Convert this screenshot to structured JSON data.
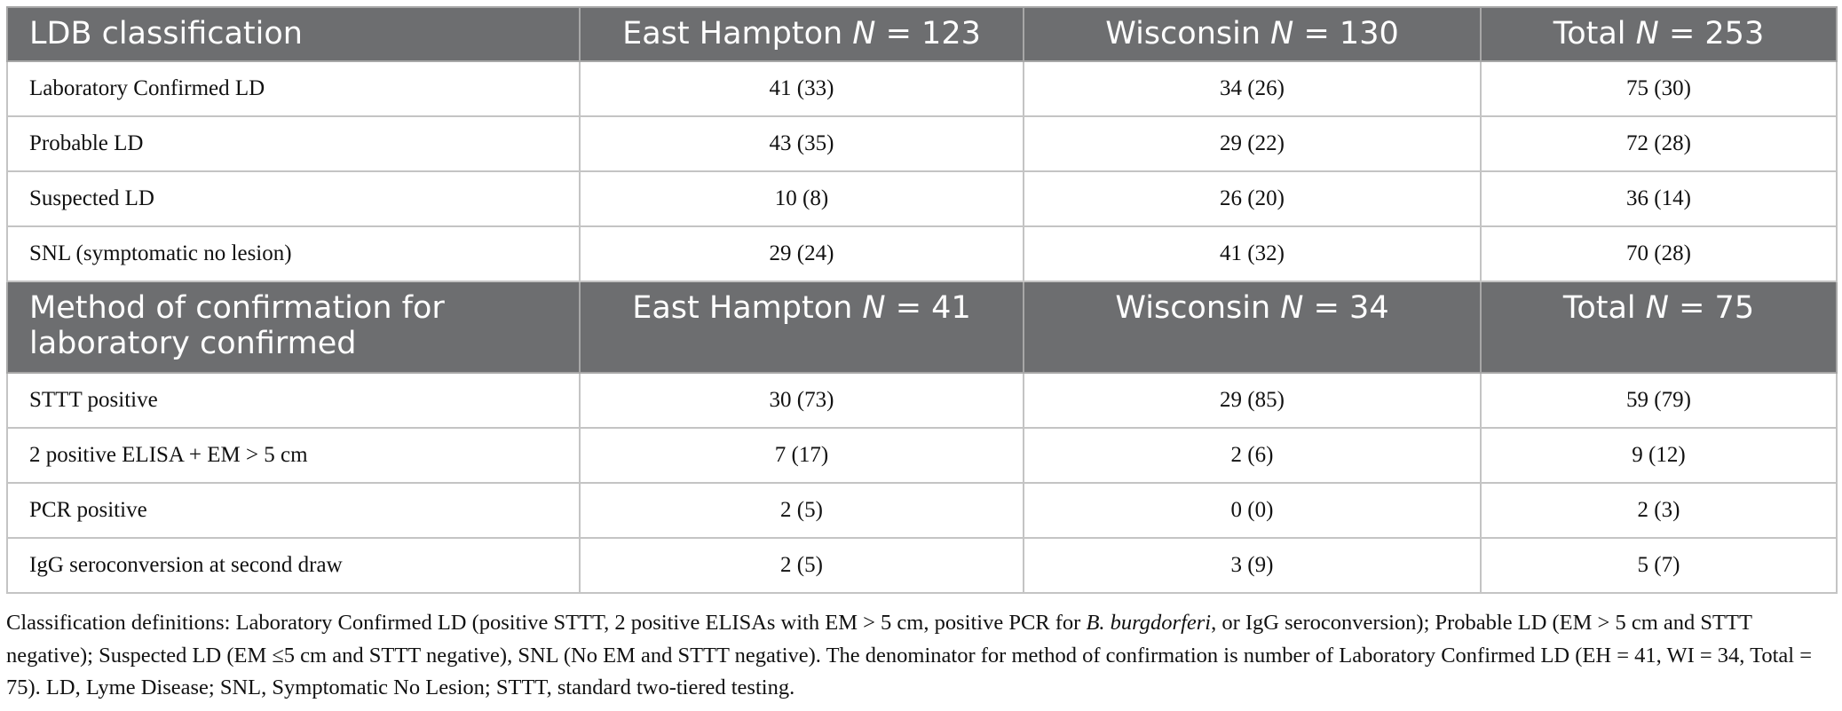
{
  "table": {
    "sections": [
      {
        "header": [
          [
            "LDB classification"
          ],
          [
            "East Hampton ",
            "N",
            " = 123"
          ],
          [
            "Wisconsin ",
            "N",
            " = 130"
          ],
          [
            "Total ",
            "N",
            " = 253"
          ]
        ],
        "rows": [
          [
            "Laboratory Confirmed LD",
            "41 (33)",
            "34 (26)",
            "75 (30)"
          ],
          [
            "Probable LD",
            "43 (35)",
            "29 (22)",
            "72 (28)"
          ],
          [
            "Suspected LD",
            "10 (8)",
            "26 (20)",
            "36 (14)"
          ],
          [
            "SNL (symptomatic no lesion)",
            "29 (24)",
            "41 (32)",
            "70 (28)"
          ]
        ]
      },
      {
        "header": [
          [
            "Method of confirmation for laboratory confirmed"
          ],
          [
            "East Hampton ",
            "N",
            " = 41"
          ],
          [
            "Wisconsin ",
            "N",
            " = 34"
          ],
          [
            "Total ",
            "N",
            " = 75"
          ]
        ],
        "rows": [
          [
            "STTT positive",
            "30 (73)",
            "29 (85)",
            "59 (79)"
          ],
          [
            "2 positive ELISA + EM > 5 cm",
            "7 (17)",
            "2 (6)",
            "9 (12)"
          ],
          [
            "PCR positive",
            "2 (5)",
            "0 (0)",
            "2 (3)"
          ],
          [
            "IgG seroconversion at second draw",
            "2 (5)",
            "3 (9)",
            "5 (7)"
          ]
        ]
      }
    ]
  },
  "footnote": [
    "Classification definitions: Laboratory Confirmed LD (positive STTT, 2 positive ELISAs with EM > 5 cm, positive PCR for ",
    "B. burgdorferi",
    ", or IgG seroconversion); Probable LD (EM > 5 cm and STTT negative); Suspected LD (EM ≤5 cm and STTT negative), SNL (No EM and STTT negative). The denominator for method of confirmation is number of Laboratory Confirmed LD (EH = 41, WI = 34, Total = 75). LD, Lyme Disease; SNL, Symptomatic No Lesion; STTT, standard two-tiered testing."
  ]
}
